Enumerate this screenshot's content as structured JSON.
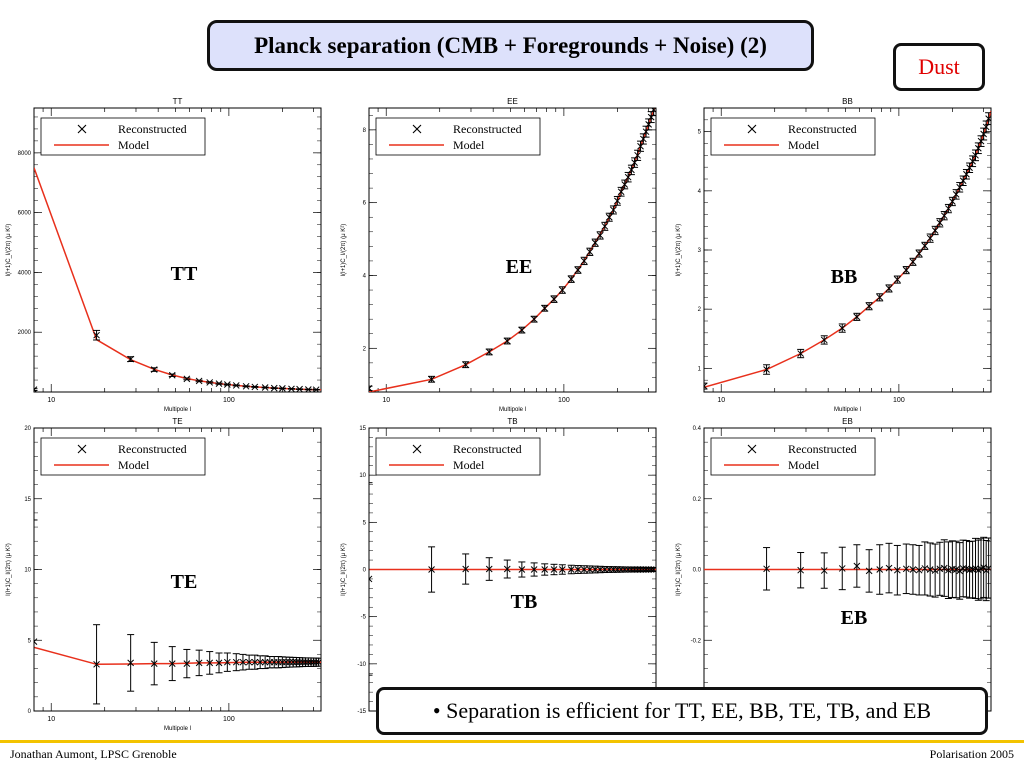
{
  "slide": {
    "title": "Planck separation (CMB + Foregrounds + Noise) (2)",
    "tag": "Dust",
    "note": "• Separation is efficient for TT, EE, BB, TE, TB, and EB",
    "footer_left": "Jonathan Aumont, LPSC Grenoble",
    "footer_right": "Polarisation 2005"
  },
  "colors": {
    "model": "#e8301c",
    "marker": "#000000",
    "title_bg": "#dde1fb",
    "tag_text": "#e00000",
    "footer_bar": "#f3c300"
  },
  "chart_data": [
    {
      "type": "line",
      "title": "TT",
      "big_label": "TT",
      "xlabel": "Multipole l",
      "ylabel": "l(l+1)C_l/(2π) (μ K²)",
      "xscale": "log",
      "xlim": [
        8,
        330
      ],
      "ylim": [
        0,
        9500
      ],
      "xticks": [
        10,
        100
      ],
      "xtick_labels": [
        "10",
        "100"
      ],
      "yticks": [
        2000,
        4000,
        6000,
        8000
      ],
      "ytick_labels": [
        "2000",
        "4000",
        "6000",
        "8000"
      ],
      "legend": [
        "Reconstructed",
        "Model"
      ],
      "series": [
        {
          "name": "Reconstructed",
          "kind": "points",
          "x": [
            8,
            18,
            28,
            38,
            48,
            58,
            68,
            78,
            88,
            98,
            110,
            125,
            140,
            160,
            180,
            200,
            225,
            250,
            280,
            310
          ],
          "y": [
            80,
            1900,
            1100,
            750,
            560,
            440,
            370,
            320,
            280,
            250,
            220,
            190,
            170,
            150,
            130,
            120,
            105,
            95,
            85,
            78
          ],
          "err": [
            30,
            160,
            80,
            60,
            40,
            30,
            25,
            22,
            20,
            18,
            16,
            15,
            14,
            13,
            12,
            11,
            10,
            10,
            9,
            9
          ]
        },
        {
          "name": "Model",
          "kind": "line",
          "x": [
            8,
            18,
            28,
            38,
            48,
            58,
            68,
            78,
            88,
            98,
            110,
            125,
            140,
            160,
            180,
            200,
            225,
            250,
            280,
            310,
            330
          ],
          "y": [
            7500,
            1750,
            1080,
            760,
            570,
            450,
            375,
            320,
            280,
            250,
            220,
            190,
            170,
            150,
            130,
            120,
            105,
            95,
            85,
            78,
            74
          ]
        }
      ]
    },
    {
      "type": "line",
      "title": "EE",
      "big_label": "EE",
      "xlabel": "Multipole l",
      "ylabel": "l(l+1)C_l/(2π) (μ K²)",
      "xscale": "log",
      "xlim": [
        8,
        330
      ],
      "ylim": [
        0.8,
        8.6
      ],
      "xticks": [
        10,
        100
      ],
      "xtick_labels": [
        "10",
        "100"
      ],
      "yticks": [
        2,
        4,
        6,
        8
      ],
      "ytick_labels": [
        "2",
        "4",
        "6",
        "8"
      ],
      "legend": [
        "Reconstructed",
        "Model"
      ],
      "series": [
        {
          "name": "Reconstructed",
          "kind": "points",
          "x": [
            8,
            18,
            28,
            38,
            48,
            58,
            68,
            78,
            88,
            98,
            110,
            120,
            130,
            140,
            150,
            160,
            170,
            180,
            190,
            200,
            210,
            220,
            230,
            240,
            250,
            260,
            270,
            280,
            290,
            300,
            310,
            320
          ],
          "y": [
            0.9,
            1.15,
            1.55,
            1.9,
            2.2,
            2.5,
            2.8,
            3.1,
            3.35,
            3.6,
            3.9,
            4.15,
            4.4,
            4.65,
            4.9,
            5.1,
            5.35,
            5.6,
            5.8,
            6.05,
            6.3,
            6.5,
            6.7,
            6.9,
            7.1,
            7.3,
            7.55,
            7.75,
            7.95,
            8.15,
            8.35,
            8.55
          ],
          "err": [
            0.06,
            0.08,
            0.08,
            0.08,
            0.08,
            0.08,
            0.08,
            0.08,
            0.09,
            0.09,
            0.09,
            0.09,
            0.1,
            0.1,
            0.1,
            0.1,
            0.11,
            0.11,
            0.11,
            0.12,
            0.12,
            0.12,
            0.13,
            0.13,
            0.13,
            0.14,
            0.14,
            0.14,
            0.15,
            0.15,
            0.15,
            0.16
          ]
        },
        {
          "name": "Model",
          "kind": "line",
          "x": [
            8,
            18,
            28,
            38,
            48,
            58,
            68,
            78,
            88,
            98,
            110,
            130,
            150,
            170,
            190,
            210,
            230,
            250,
            270,
            290,
            310,
            330
          ],
          "y": [
            0.8,
            1.15,
            1.55,
            1.9,
            2.2,
            2.5,
            2.8,
            3.1,
            3.35,
            3.6,
            3.9,
            4.4,
            4.9,
            5.35,
            5.8,
            6.3,
            6.7,
            7.1,
            7.55,
            7.95,
            8.35,
            8.7
          ]
        }
      ]
    },
    {
      "type": "line",
      "title": "BB",
      "big_label": "BB",
      "xlabel": "Multipole l",
      "ylabel": "l(l+1)C_l/(2π) (μ K²)",
      "xscale": "log",
      "xlim": [
        8,
        330
      ],
      "ylim": [
        0.6,
        5.4
      ],
      "xticks": [
        10,
        100
      ],
      "xtick_labels": [
        "10",
        "100"
      ],
      "yticks": [
        1,
        2,
        3,
        4,
        5
      ],
      "ytick_labels": [
        "1",
        "2",
        "3",
        "4",
        "5"
      ],
      "legend": [
        "Reconstructed",
        "Model"
      ],
      "series": [
        {
          "name": "Reconstructed",
          "kind": "points",
          "x": [
            8,
            18,
            28,
            38,
            48,
            58,
            68,
            78,
            88,
            98,
            110,
            120,
            130,
            140,
            150,
            160,
            170,
            180,
            190,
            200,
            210,
            220,
            230,
            240,
            250,
            260,
            270,
            280,
            290,
            300,
            310,
            320
          ],
          "y": [
            0.7,
            0.98,
            1.25,
            1.48,
            1.68,
            1.87,
            2.05,
            2.2,
            2.35,
            2.5,
            2.66,
            2.8,
            2.94,
            3.07,
            3.2,
            3.33,
            3.46,
            3.58,
            3.7,
            3.82,
            3.94,
            4.06,
            4.17,
            4.28,
            4.39,
            4.5,
            4.6,
            4.72,
            4.84,
            4.96,
            5.08,
            5.22
          ],
          "err": [
            0.05,
            0.08,
            0.07,
            0.07,
            0.07,
            0.06,
            0.06,
            0.06,
            0.06,
            0.06,
            0.06,
            0.06,
            0.06,
            0.06,
            0.07,
            0.07,
            0.07,
            0.07,
            0.07,
            0.07,
            0.08,
            0.08,
            0.08,
            0.08,
            0.08,
            0.09,
            0.09,
            0.09,
            0.09,
            0.1,
            0.1,
            0.1
          ]
        },
        {
          "name": "Model",
          "kind": "line",
          "x": [
            8,
            18,
            28,
            38,
            48,
            58,
            68,
            78,
            88,
            98,
            110,
            130,
            150,
            170,
            190,
            210,
            230,
            250,
            270,
            290,
            310,
            330
          ],
          "y": [
            0.68,
            0.98,
            1.25,
            1.48,
            1.68,
            1.87,
            2.05,
            2.2,
            2.35,
            2.5,
            2.66,
            2.94,
            3.2,
            3.46,
            3.7,
            3.94,
            4.17,
            4.39,
            4.6,
            4.84,
            5.08,
            5.35
          ]
        }
      ]
    },
    {
      "type": "line",
      "title": "TE",
      "big_label": "TE",
      "xlabel": "Multipole l",
      "ylabel": "l(l+1)C_l/(2π) (μ K²)",
      "xscale": "log",
      "xlim": [
        8,
        330
      ],
      "ylim": [
        0,
        20
      ],
      "xticks": [
        10,
        100
      ],
      "xtick_labels": [
        "10",
        "100"
      ],
      "yticks": [
        0,
        5,
        10,
        15,
        20
      ],
      "ytick_labels": [
        "0",
        "5",
        "10",
        "15",
        "20"
      ],
      "legend": [
        "Reconstructed",
        "Model"
      ],
      "series": [
        {
          "name": "Reconstructed",
          "kind": "points",
          "x": [
            8,
            18,
            28,
            38,
            48,
            58,
            68,
            78,
            88,
            98,
            110,
            120,
            130,
            140,
            150,
            160,
            170,
            180,
            190,
            200,
            210,
            220,
            230,
            240,
            250,
            260,
            270,
            280,
            290,
            300,
            310,
            320
          ],
          "y": [
            4.9,
            3.3,
            3.4,
            3.35,
            3.35,
            3.35,
            3.4,
            3.4,
            3.4,
            3.45,
            3.45,
            3.45,
            3.45,
            3.45,
            3.45,
            3.45,
            3.45,
            3.45,
            3.45,
            3.45,
            3.45,
            3.45,
            3.45,
            3.45,
            3.45,
            3.45,
            3.45,
            3.45,
            3.45,
            3.45,
            3.45,
            3.45
          ],
          "err": [
            8.6,
            2.8,
            2.0,
            1.5,
            1.2,
            1.0,
            0.9,
            0.8,
            0.7,
            0.65,
            0.6,
            0.55,
            0.5,
            0.5,
            0.45,
            0.45,
            0.4,
            0.4,
            0.4,
            0.38,
            0.36,
            0.35,
            0.34,
            0.33,
            0.32,
            0.31,
            0.3,
            0.3,
            0.3,
            0.29,
            0.29,
            0.28
          ]
        },
        {
          "name": "Model",
          "kind": "line",
          "x": [
            8,
            18,
            28,
            38,
            48,
            58,
            68,
            78,
            88,
            98,
            110,
            130,
            150,
            170,
            190,
            210,
            230,
            250,
            270,
            290,
            310,
            330
          ],
          "y": [
            4.5,
            3.3,
            3.32,
            3.35,
            3.35,
            3.37,
            3.4,
            3.4,
            3.4,
            3.42,
            3.43,
            3.44,
            3.45,
            3.45,
            3.45,
            3.45,
            3.45,
            3.45,
            3.45,
            3.45,
            3.45,
            3.45
          ]
        }
      ]
    },
    {
      "type": "line",
      "title": "TB",
      "big_label": "TB",
      "xlabel": "",
      "ylabel": "l(l+1)C_l/(2π) (μ K²)",
      "xscale": "log",
      "xlim": [
        8,
        330
      ],
      "ylim": [
        -15,
        15
      ],
      "xticks": [
        10,
        100
      ],
      "xtick_labels": [
        "",
        ""
      ],
      "yticks": [
        -15,
        -10,
        -5,
        0,
        5,
        10,
        15
      ],
      "ytick_labels": [
        "-15",
        "-10",
        "-5",
        "0",
        "5",
        "10",
        "15"
      ],
      "legend": [
        "Reconstructed",
        "Model"
      ],
      "series": [
        {
          "name": "Reconstructed",
          "kind": "points",
          "x": [
            8,
            18,
            28,
            38,
            48,
            58,
            68,
            78,
            88,
            98,
            110,
            120,
            130,
            140,
            150,
            160,
            170,
            180,
            190,
            200,
            210,
            220,
            230,
            240,
            250,
            260,
            270,
            280,
            290,
            300,
            310,
            320
          ],
          "y": [
            -1.0,
            0.0,
            0.05,
            0.05,
            0.05,
            0.0,
            0.0,
            0.0,
            0.0,
            0.0,
            0.0,
            0.0,
            0.0,
            0.0,
            0.0,
            0.0,
            0.0,
            0.0,
            0.0,
            0.0,
            0.0,
            0.0,
            0.0,
            0.0,
            0.0,
            0.0,
            0.0,
            0.0,
            0.0,
            0.0,
            0.0,
            0.0
          ],
          "err": [
            10.2,
            2.4,
            1.6,
            1.2,
            0.95,
            0.8,
            0.7,
            0.6,
            0.55,
            0.5,
            0.45,
            0.42,
            0.4,
            0.38,
            0.36,
            0.34,
            0.32,
            0.31,
            0.3,
            0.29,
            0.28,
            0.27,
            0.26,
            0.25,
            0.25,
            0.24,
            0.24,
            0.23,
            0.23,
            0.22,
            0.22,
            0.21
          ]
        },
        {
          "name": "Model",
          "kind": "line",
          "x": [
            8,
            330
          ],
          "y": [
            0,
            0
          ]
        }
      ]
    },
    {
      "type": "line",
      "title": "EB",
      "big_label": "EB",
      "xlabel": "",
      "ylabel": "l(l+1)C_l/(2π) (μ K²)",
      "xscale": "log",
      "xlim": [
        8,
        330
      ],
      "ylim": [
        -0.4,
        0.4
      ],
      "xticks": [
        10,
        100
      ],
      "xtick_labels": [
        "",
        ""
      ],
      "yticks": [
        -0.4,
        -0.2,
        0.0,
        0.2,
        0.4
      ],
      "ytick_labels": [
        "-0.4",
        "-0.2",
        "0.0",
        "0.2",
        "0.4"
      ],
      "legend": [
        "Reconstructed",
        "Model"
      ],
      "series": [
        {
          "name": "Reconstructed",
          "kind": "points",
          "x": [
            18,
            28,
            38,
            48,
            58,
            68,
            78,
            88,
            98,
            110,
            120,
            130,
            140,
            150,
            160,
            170,
            180,
            190,
            200,
            210,
            220,
            230,
            240,
            250,
            260,
            270,
            280,
            290,
            300,
            310,
            320
          ],
          "y": [
            0.002,
            -0.002,
            -0.003,
            0.003,
            0.01,
            -0.004,
            0.0,
            0.004,
            -0.002,
            0.002,
            0.0,
            -0.002,
            0.003,
            0.0,
            -0.003,
            0.002,
            0.004,
            -0.002,
            0.001,
            0.0,
            -0.004,
            0.003,
            0.002,
            -0.001,
            0.0,
            0.003,
            -0.002,
            0.002,
            0.006,
            -0.003,
            0.004
          ],
          "err": [
            0.06,
            0.05,
            0.05,
            0.06,
            0.06,
            0.06,
            0.07,
            0.07,
            0.07,
            0.07,
            0.07,
            0.07,
            0.075,
            0.075,
            0.075,
            0.075,
            0.08,
            0.08,
            0.08,
            0.08,
            0.08,
            0.08,
            0.08,
            0.08,
            0.08,
            0.085,
            0.085,
            0.085,
            0.085,
            0.085,
            0.085
          ]
        },
        {
          "name": "Model",
          "kind": "line",
          "x": [
            8,
            330
          ],
          "y": [
            0,
            0
          ]
        }
      ]
    }
  ]
}
